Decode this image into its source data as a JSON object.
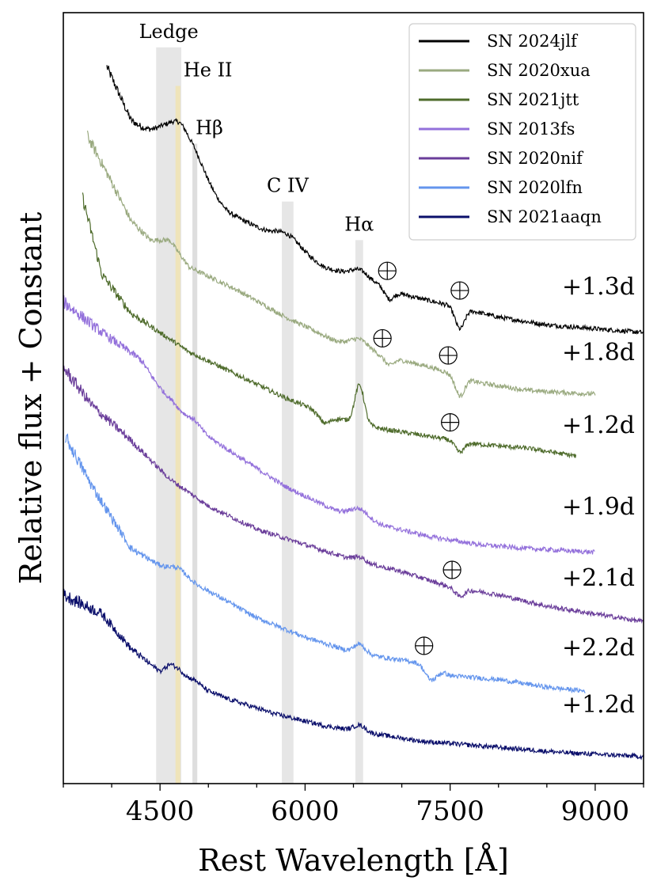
{
  "chart_data": {
    "type": "line",
    "xlabel": "Rest Wavelength [Å]",
    "ylabel": "Relative flux + Constant",
    "xlim": [
      3500,
      9500
    ],
    "xticks": [
      4500,
      6000,
      7500,
      9000
    ],
    "yticks_shown": false,
    "grid": false,
    "legend_position": "top-right",
    "line_regions": [
      {
        "label": "Ledge",
        "x0": 4460,
        "x1": 4720,
        "color": "#dcdcdc",
        "top": 0.955
      },
      {
        "label": "He II",
        "x0": 4660,
        "x1": 4710,
        "color": "#f2e2a6",
        "top": 0.905
      },
      {
        "label": "Hβ",
        "x0": 4835,
        "x1": 4885,
        "color": "#d0d0d0",
        "top": 0.83
      },
      {
        "label": "C IV",
        "x0": 5760,
        "x1": 5880,
        "color": "#dcdcdc",
        "top": 0.755
      },
      {
        "label": "Hα",
        "x0": 6520,
        "x1": 6600,
        "color": "#dcdcdc",
        "top": 0.705
      }
    ],
    "series": [
      {
        "name": "SN 2024jlf",
        "color": "#000000",
        "epoch": "+1.3d",
        "xmin": 3950,
        "xmax": 9500,
        "points": [
          [
            3950,
            0.93
          ],
          [
            4200,
            0.86
          ],
          [
            4500,
            0.83
          ],
          [
            4700,
            0.8
          ],
          [
            4800,
            0.78
          ],
          [
            5200,
            0.74
          ],
          [
            5700,
            0.71
          ],
          [
            6200,
            0.67
          ],
          [
            6600,
            0.655
          ],
          [
            7000,
            0.635
          ],
          [
            7500,
            0.62
          ],
          [
            8000,
            0.605
          ],
          [
            8500,
            0.595
          ],
          [
            9000,
            0.59
          ],
          [
            9500,
            0.585
          ]
        ],
        "features": [
          [
            4750,
            0.6,
            0.06,
            0.03
          ],
          [
            5830,
            0.4,
            0.012,
            0.02
          ],
          [
            6563,
            -0.2,
            0.01,
            0.015
          ],
          [
            6870,
            0.5,
            -0.013,
            0.008
          ],
          [
            7600,
            0.5,
            -0.027,
            0.008
          ]
        ],
        "earth_marks": [
          6850,
          7600
        ]
      },
      {
        "name": "SN 2020xua",
        "color": "#9aaa80",
        "epoch": "+1.8d",
        "xmin": 3750,
        "xmax": 9000,
        "points": [
          [
            3750,
            0.84
          ],
          [
            4000,
            0.78
          ],
          [
            4200,
            0.73
          ],
          [
            4400,
            0.705
          ],
          [
            4600,
            0.705
          ],
          [
            4800,
            0.67
          ],
          [
            5300,
            0.64
          ],
          [
            5800,
            0.605
          ],
          [
            6300,
            0.575
          ],
          [
            6800,
            0.555
          ],
          [
            7300,
            0.54
          ],
          [
            7800,
            0.52
          ],
          [
            8300,
            0.51
          ],
          [
            9000,
            0.505
          ]
        ],
        "features": [
          [
            6563,
            -0.2,
            0.012,
            0.015
          ],
          [
            6870,
            0.5,
            -0.01,
            0.008
          ],
          [
            7600,
            0.5,
            -0.025,
            0.008
          ]
        ],
        "earth_marks": [
          6800,
          7480
        ]
      },
      {
        "name": "SN 2021jtt",
        "color": "#4e6b2b",
        "epoch": "+1.2d",
        "xmin": 3700,
        "xmax": 8800,
        "points": [
          [
            3700,
            0.76
          ],
          [
            3900,
            0.66
          ],
          [
            4200,
            0.61
          ],
          [
            4500,
            0.585
          ],
          [
            4800,
            0.56
          ],
          [
            5300,
            0.53
          ],
          [
            5800,
            0.5
          ],
          [
            6300,
            0.475
          ],
          [
            6800,
            0.46
          ],
          [
            7300,
            0.45
          ],
          [
            7800,
            0.44
          ],
          [
            8300,
            0.435
          ],
          [
            8800,
            0.425
          ]
        ],
        "features": [
          [
            6563,
            0,
            0.05,
            0.008
          ],
          [
            6200,
            0,
            -0.012,
            0.01
          ],
          [
            7600,
            0.5,
            -0.014,
            0.008
          ]
        ],
        "earth_marks": [
          7500
        ]
      },
      {
        "name": "SN 2013fs",
        "color": "#9370db",
        "epoch": "+1.9d",
        "xmin": 3500,
        "xmax": 9000,
        "points": [
          [
            3500,
            0.625
          ],
          [
            3900,
            0.585
          ],
          [
            4300,
            0.55
          ],
          [
            4700,
            0.475
          ],
          [
            5300,
            0.425
          ],
          [
            5800,
            0.385
          ],
          [
            6300,
            0.355
          ],
          [
            6800,
            0.335
          ],
          [
            7300,
            0.32
          ],
          [
            7800,
            0.31
          ],
          [
            8300,
            0.305
          ],
          [
            9000,
            0.3
          ]
        ],
        "features": [
          [
            6563,
            -0.2,
            0.012,
            0.015
          ],
          [
            4861,
            0,
            0.008,
            0.01
          ],
          [
            4686,
            0,
            0.01,
            0.015
          ]
        ],
        "earth_marks": []
      },
      {
        "name": "SN 2020nif",
        "color": "#6a3d9a",
        "epoch": "+2.1d",
        "xmin": 3500,
        "xmax": 9500,
        "points": [
          [
            3500,
            0.54
          ],
          [
            3800,
            0.49
          ],
          [
            4200,
            0.445
          ],
          [
            4600,
            0.395
          ],
          [
            5000,
            0.36
          ],
          [
            5500,
            0.33
          ],
          [
            6000,
            0.31
          ],
          [
            6500,
            0.29
          ],
          [
            7000,
            0.275
          ],
          [
            7500,
            0.255
          ],
          [
            8000,
            0.245
          ],
          [
            8500,
            0.23
          ],
          [
            9000,
            0.22
          ],
          [
            9500,
            0.21
          ]
        ],
        "features": [
          [
            6563,
            0,
            0.006,
            0.01
          ],
          [
            7600,
            0.5,
            -0.01,
            0.008
          ]
        ],
        "earth_marks": [
          7520
        ]
      },
      {
        "name": "SN 2020lfn",
        "color": "#6495ed",
        "epoch": "+2.2d",
        "xmin": 3520,
        "xmax": 8900,
        "points": [
          [
            3520,
            0.45
          ],
          [
            3800,
            0.385
          ],
          [
            4200,
            0.305
          ],
          [
            4600,
            0.275
          ],
          [
            5000,
            0.25
          ],
          [
            5500,
            0.215
          ],
          [
            6000,
            0.19
          ],
          [
            6500,
            0.17
          ],
          [
            7000,
            0.16
          ],
          [
            7300,
            0.155
          ],
          [
            7500,
            0.14
          ],
          [
            8000,
            0.135
          ],
          [
            8500,
            0.125
          ],
          [
            8900,
            0.12
          ]
        ],
        "features": [
          [
            6563,
            0,
            0.012,
            0.01
          ],
          [
            7300,
            0.5,
            -0.02,
            0.01
          ],
          [
            4686,
            0,
            0.01,
            0.015
          ]
        ],
        "earth_marks": [
          7230
        ]
      },
      {
        "name": "SN 2021aaqn",
        "color": "#0b0f6b",
        "epoch": "+1.2d",
        "xmin": 3500,
        "xmax": 9500,
        "points": [
          [
            3500,
            0.245
          ],
          [
            3900,
            0.22
          ],
          [
            4200,
            0.175
          ],
          [
            4500,
            0.145
          ],
          [
            4600,
            0.15
          ],
          [
            4800,
            0.13
          ],
          [
            5200,
            0.11
          ],
          [
            5700,
            0.09
          ],
          [
            6200,
            0.075
          ],
          [
            6700,
            0.065
          ],
          [
            7200,
            0.055
          ],
          [
            7700,
            0.05
          ],
          [
            8200,
            0.045
          ],
          [
            8700,
            0.04
          ],
          [
            9500,
            0.035
          ]
        ],
        "features": [
          [
            6563,
            0,
            0.008,
            0.01
          ],
          [
            4686,
            0,
            0.008,
            0.015
          ],
          [
            4861,
            0,
            0.006,
            0.01
          ]
        ],
        "earth_marks": []
      }
    ]
  }
}
